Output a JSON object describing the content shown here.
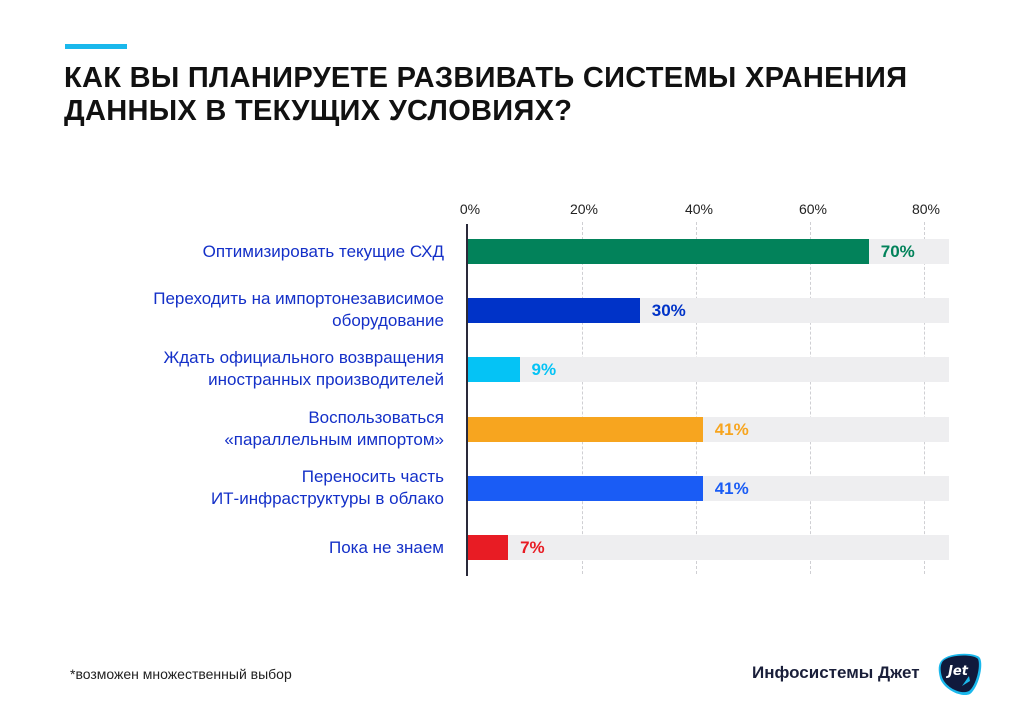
{
  "title": "КАК ВЫ ПЛАНИРУЕТЕ РАЗВИВАТЬ СИСТЕМЫ ХРАНЕНИЯ ДАННЫХ В ТЕКУЩИХ УСЛОВИЯХ?",
  "accent_color": "#1ab8ec",
  "axis": {
    "ticks": [
      "0%",
      "20%",
      "40%",
      "60%",
      "80%"
    ]
  },
  "rows": [
    {
      "label": "Оптимизировать текущие СХД",
      "value_label": "70%",
      "color": "#02825a"
    },
    {
      "label": "Переходить на импортонезависимое\nоборудование",
      "value_label": "30%",
      "color": "#0033c8"
    },
    {
      "label": "Ждать официального возвращения\nиностранных производителей",
      "value_label": "9%",
      "color": "#05c3f5"
    },
    {
      "label": "Воспользоваться\n«параллельным импортом»",
      "value_label": "41%",
      "color": "#f7a51f"
    },
    {
      "label": "Переносить часть\nИТ-инфраструктуры в облако",
      "value_label": "41%",
      "color": "#1a5cf5"
    },
    {
      "label": "Пока не знаем",
      "value_label": "7%",
      "color": "#e81c24"
    }
  ],
  "footnote": "*возможен множественный выбор",
  "brand": {
    "name": "Инфосистемы Джет",
    "logo_text": "Jet",
    "logo_icon": "jet-logo-icon"
  },
  "chart_data": {
    "type": "bar",
    "orientation": "horizontal",
    "title": "КАК ВЫ ПЛАНИРУЕТЕ РАЗВИВАТЬ СИСТЕМЫ ХРАНЕНИЯ ДАННЫХ В ТЕКУЩИХ УСЛОВИЯХ?",
    "categories": [
      "Оптимизировать текущие СХД",
      "Переходить на импортонезависимое оборудование",
      "Ждать официального возвращения иностранных производителей",
      "Воспользоваться «параллельным импортом»",
      "Переносить часть ИТ-инфраструктуры в облако",
      "Пока не знаем"
    ],
    "values": [
      70,
      30,
      9,
      41,
      41,
      7
    ],
    "colors": [
      "#02825a",
      "#0033c8",
      "#05c3f5",
      "#f7a51f",
      "#1a5cf5",
      "#e81c24"
    ],
    "xlabel": "",
    "ylabel": "",
    "xlim": [
      0,
      80
    ],
    "xticks": [
      "0%",
      "20%",
      "40%",
      "60%",
      "80%"
    ],
    "grid": "vertical dashed",
    "legend": "none",
    "annotations": [
      "*возможен множественный выбор"
    ]
  }
}
